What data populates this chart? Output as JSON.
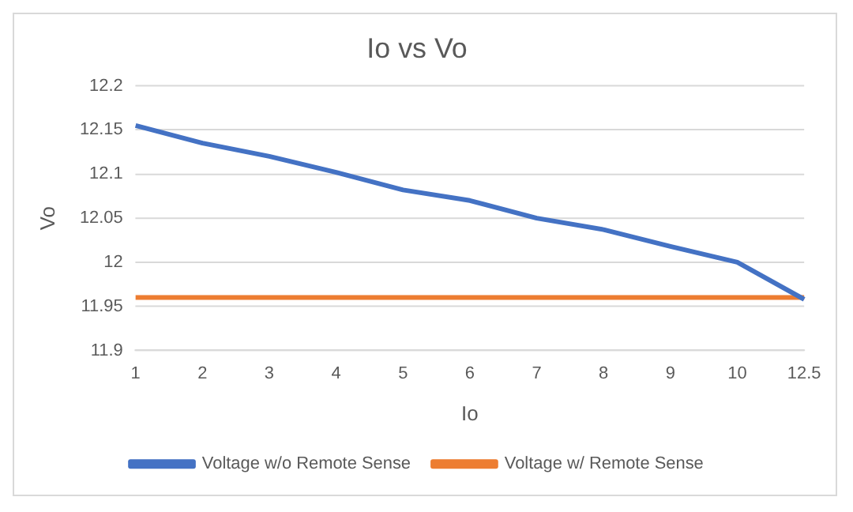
{
  "chart_data": {
    "type": "line",
    "title": "Io vs Vo",
    "xlabel": "Io",
    "ylabel": "Vo",
    "categories": [
      "1",
      "2",
      "3",
      "4",
      "5",
      "6",
      "7",
      "8",
      "9",
      "10",
      "12.5"
    ],
    "series": [
      {
        "name": "Voltage w/o Remote Sense",
        "color": "#4472c4",
        "values": [
          12.155,
          12.135,
          12.12,
          12.102,
          12.082,
          12.07,
          12.05,
          12.037,
          12.018,
          12.0,
          11.958
        ]
      },
      {
        "name": "Voltage w/ Remote Sense",
        "color": "#ed7d31",
        "values": [
          11.96,
          11.96,
          11.96,
          11.96,
          11.96,
          11.96,
          11.96,
          11.96,
          11.96,
          11.96,
          11.96
        ]
      }
    ],
    "ylim": [
      11.9,
      12.2
    ],
    "yticks": [
      11.9,
      11.95,
      12,
      12.05,
      12.1,
      12.15,
      12.2
    ],
    "grid": "y",
    "legend": "bottom",
    "marker": "none",
    "line_style": "solid"
  }
}
